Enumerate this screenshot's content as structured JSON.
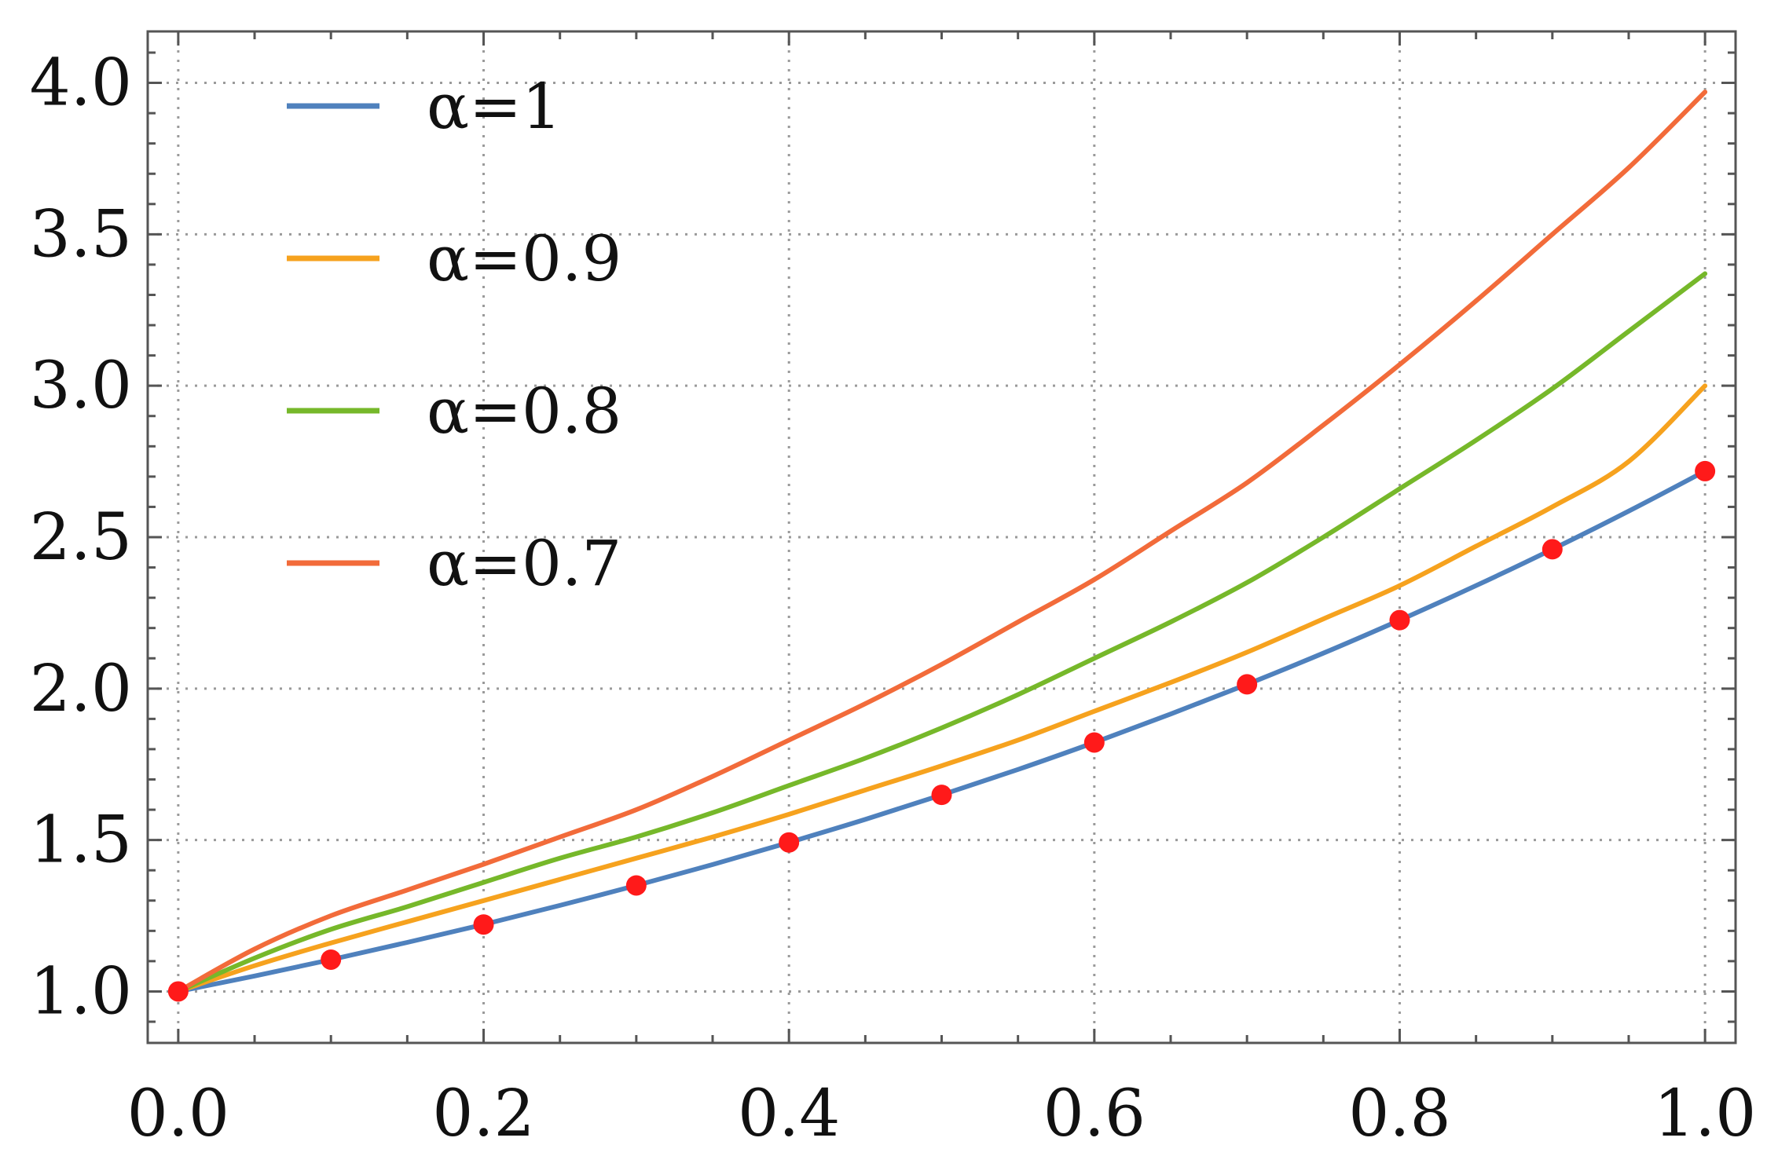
{
  "chart_data": {
    "type": "line",
    "title": "",
    "xlabel": "",
    "ylabel": "",
    "xlim": [
      -0.02,
      1.02
    ],
    "ylim": [
      0.83,
      4.17
    ],
    "x_ticks": [
      "0.0",
      "0.2",
      "0.4",
      "0.6",
      "0.8",
      "1.0"
    ],
    "y_ticks": [
      "1.0",
      "1.5",
      "2.0",
      "2.5",
      "3.0",
      "3.5",
      "4.0"
    ],
    "grid": true,
    "legend_position": "top-left",
    "x": [
      0.0,
      0.05,
      0.1,
      0.15,
      0.2,
      0.25,
      0.3,
      0.35,
      0.4,
      0.45,
      0.5,
      0.55,
      0.6,
      0.65,
      0.7,
      0.75,
      0.8,
      0.85,
      0.9,
      0.95,
      1.0
    ],
    "series": [
      {
        "name": "α=1",
        "color": "#4f81bd",
        "values": [
          1.0,
          1.051,
          1.105,
          1.162,
          1.221,
          1.284,
          1.35,
          1.419,
          1.492,
          1.568,
          1.649,
          1.733,
          1.822,
          1.916,
          2.014,
          2.117,
          2.226,
          2.34,
          2.46,
          2.586,
          2.718
        ]
      },
      {
        "name": "α=0.9",
        "color": "#f6a21e",
        "values": [
          1.0,
          1.085,
          1.16,
          1.23,
          1.3,
          1.37,
          1.44,
          1.51,
          1.585,
          1.665,
          1.745,
          1.83,
          1.925,
          2.02,
          2.12,
          2.23,
          2.34,
          2.47,
          2.6,
          2.75,
          3.0
        ]
      },
      {
        "name": "α=0.8",
        "color": "#76b82a",
        "values": [
          1.0,
          1.11,
          1.205,
          1.28,
          1.36,
          1.44,
          1.51,
          1.59,
          1.68,
          1.77,
          1.87,
          1.98,
          2.1,
          2.22,
          2.35,
          2.5,
          2.66,
          2.82,
          2.99,
          3.18,
          3.37
        ]
      },
      {
        "name": "α=0.7",
        "color": "#f26b3a",
        "values": [
          1.0,
          1.14,
          1.25,
          1.335,
          1.42,
          1.51,
          1.6,
          1.71,
          1.83,
          1.95,
          2.08,
          2.22,
          2.36,
          2.52,
          2.68,
          2.87,
          3.07,
          3.28,
          3.5,
          3.72,
          3.97
        ]
      }
    ],
    "markers": {
      "color": "#ff1a1a",
      "x": [
        0.0,
        0.1,
        0.2,
        0.3,
        0.4,
        0.5,
        0.6,
        0.7,
        0.8,
        0.9,
        1.0
      ],
      "y": [
        1.0,
        1.105,
        1.221,
        1.35,
        1.492,
        1.649,
        1.822,
        2.014,
        2.226,
        2.46,
        2.718
      ]
    }
  }
}
